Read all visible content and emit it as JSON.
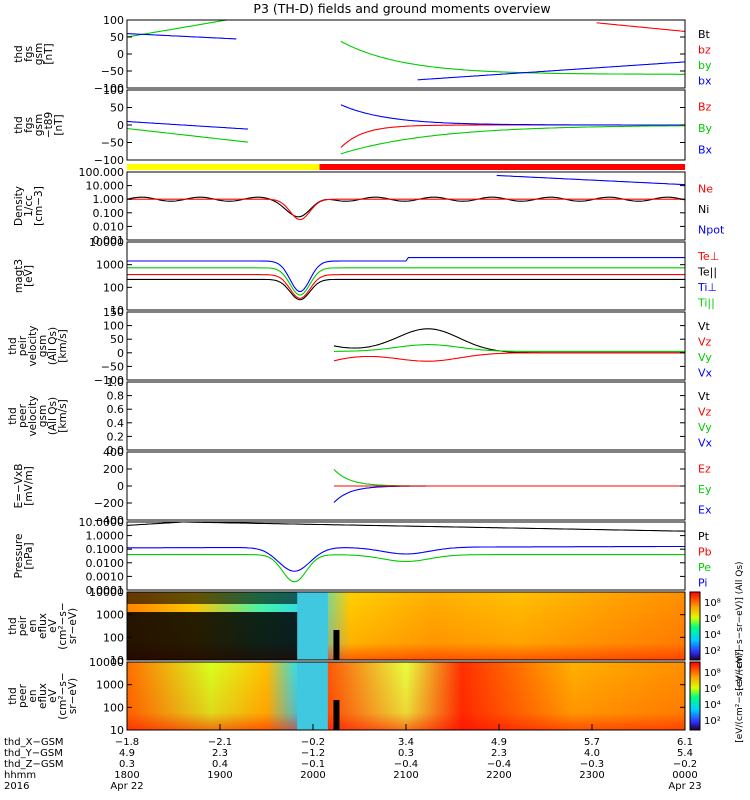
{
  "title": "P3 (TH-D) fields and ground moments overview",
  "chart_data": {
    "type": "line",
    "x_range_hhmm": [
      "1800",
      "0000"
    ],
    "panels": [
      {
        "id": "fgs_gsm",
        "ylabel": [
          "thd",
          "fgs",
          "gsm",
          "[nT]"
        ],
        "ylim": [
          -100,
          100
        ],
        "yticks": [
          "100",
          "50",
          "0",
          "−50",
          "−100"
        ],
        "legend": [
          {
            "label": "Bt",
            "color": "#000000"
          },
          {
            "label": "bz",
            "color": "#ff0000"
          },
          {
            "label": "by",
            "color": "#00cc00"
          },
          {
            "label": "bx",
            "color": "#0000ff"
          }
        ]
      },
      {
        "id": "fgs_gsm_t89",
        "ylabel": [
          "thd",
          "fgs",
          "gsm",
          "−t89",
          "[nT]"
        ],
        "ylim": [
          -120,
          120
        ],
        "yticks": [
          "100",
          "50",
          "0",
          "−50",
          "−100"
        ],
        "legend": [
          {
            "label": "Bz",
            "color": "#ff0000"
          },
          {
            "label": "By",
            "color": "#00cc00"
          },
          {
            "label": "Bx",
            "color": "#0000ff"
          }
        ],
        "mode_bar": [
          {
            "from": 0.0,
            "to": 0.345,
            "color": "#ffff00"
          },
          {
            "from": 0.345,
            "to": 1.0,
            "color": "#ff0000"
          }
        ]
      },
      {
        "id": "density",
        "ylabel": [
          "Density",
          "1/cc",
          "[cm−3]"
        ],
        "log": true,
        "yticks": [
          "100.000",
          "10.000",
          "1.000",
          "0.100",
          "0.010",
          "0.001"
        ],
        "legend": [
          {
            "label": "Ne",
            "color": "#ff0000"
          },
          {
            "label": "Ni",
            "color": "#000000"
          },
          {
            "label": "Npot",
            "color": "#0000ff"
          }
        ]
      },
      {
        "id": "temperature",
        "ylabel": [
          "magt3",
          "[eV]"
        ],
        "log": true,
        "yticks": [
          "10000",
          "1000",
          "100",
          "10"
        ],
        "legend": [
          {
            "label": "Te⊥",
            "color": "#ff0000"
          },
          {
            "label": "Te||",
            "color": "#000000"
          },
          {
            "label": "Ti⊥",
            "color": "#0000ff"
          },
          {
            "label": "Ti||",
            "color": "#00cc00"
          }
        ]
      },
      {
        "id": "peir_velocity",
        "ylabel": [
          "thd",
          "peir",
          "velocity",
          "gsm",
          "(All Qs)",
          "[km/s]"
        ],
        "ylim": [
          -100,
          150
        ],
        "yticks": [
          "150",
          "100",
          "50",
          "0",
          "−50",
          "−100"
        ],
        "legend": [
          {
            "label": "Vt",
            "color": "#000000"
          },
          {
            "label": "Vz",
            "color": "#ff0000"
          },
          {
            "label": "Vy",
            "color": "#00cc00"
          },
          {
            "label": "Vx",
            "color": "#0000ff"
          }
        ]
      },
      {
        "id": "peer_velocity",
        "ylabel": [
          "thd",
          "peer",
          "velocity",
          "gsm",
          "(All Qs)",
          "[km/s]"
        ],
        "ylim": [
          0,
          1
        ],
        "yticks": [
          "1.0",
          "0.8",
          "0.6",
          "0.4",
          "0.2",
          "0.0"
        ],
        "legend": [
          {
            "label": "Vt",
            "color": "#000000"
          },
          {
            "label": "Vz",
            "color": "#ff0000"
          },
          {
            "label": "Vy",
            "color": "#00cc00"
          },
          {
            "label": "Vx",
            "color": "#0000ff"
          }
        ]
      },
      {
        "id": "efield",
        "ylabel": [
          "E=−VxB",
          "[mV/m]"
        ],
        "ylim": [
          -400,
          400
        ],
        "yticks": [
          "400",
          "200",
          "0",
          "−200",
          "−400"
        ],
        "legend": [
          {
            "label": "Ez",
            "color": "#ff0000"
          },
          {
            "label": "Ey",
            "color": "#00cc00"
          },
          {
            "label": "Ex",
            "color": "#0000ff"
          }
        ]
      },
      {
        "id": "pressure",
        "ylabel": [
          "Pressure",
          "[nPa]"
        ],
        "log": true,
        "yticks": [
          "10.0000",
          "1.0000",
          "0.1000",
          "0.0100",
          "0.0010",
          "0.0001"
        ],
        "legend": [
          {
            "label": "Pt",
            "color": "#000000"
          },
          {
            "label": "Pb",
            "color": "#ff0000"
          },
          {
            "label": "Pe",
            "color": "#00cc00"
          },
          {
            "label": "Pi",
            "color": "#0000ff"
          }
        ]
      },
      {
        "id": "peir_spec",
        "type": "heatmap",
        "ylabel": [
          "thd",
          "peir",
          "en",
          "eflux",
          "eV",
          "(cm²−s−",
          "sr−eV)"
        ],
        "yticks": [
          "10000",
          "1000",
          "100",
          "10"
        ],
        "colorbar_ticks": [
          "10⁸",
          "10⁶",
          "10⁴",
          "10²"
        ],
        "colorbar_label": "[eV/(cm²−s−sr−eV)] (All Qs)"
      },
      {
        "id": "peer_spec",
        "type": "heatmap",
        "ylabel": [
          "thd",
          "peer",
          "en",
          "eflux",
          "eV",
          "(cm²−s−",
          "sr−eV)"
        ],
        "yticks": [
          "10000",
          "1000",
          "100",
          "10"
        ],
        "colorbar_ticks": [
          "10⁸",
          "10⁶",
          "10⁴",
          "10²"
        ],
        "colorbar_label": "[eV/(cm²−s−sr−eV)]"
      }
    ],
    "x_axis": {
      "row_labels": [
        "thd_X−GSM",
        "thd_Y−GSM",
        "thd_Z−GSM",
        "hhmm",
        "2016"
      ],
      "ticks": [
        {
          "x": "−1.8",
          "y": "4.9",
          "z": "0.3",
          "hhmm": "1800",
          "date": "Apr 22"
        },
        {
          "x": "−2.1",
          "y": "2.3",
          "z": "0.4",
          "hhmm": "1900",
          "date": ""
        },
        {
          "x": "−0.2",
          "y": "−1.2",
          "z": "−0.1",
          "hhmm": "2000",
          "date": ""
        },
        {
          "x": "3.4",
          "y": "0.3",
          "z": "−0.4",
          "hhmm": "2100",
          "date": ""
        },
        {
          "x": "4.9",
          "y": "2.3",
          "z": "−0.4",
          "hhmm": "2200",
          "date": ""
        },
        {
          "x": "5.7",
          "y": "4.0",
          "z": "−0.3",
          "hhmm": "2300",
          "date": ""
        },
        {
          "x": "6.1",
          "y": "5.4",
          "z": "−0.2",
          "hhmm": "0000",
          "date": "Apr 23"
        }
      ]
    }
  }
}
